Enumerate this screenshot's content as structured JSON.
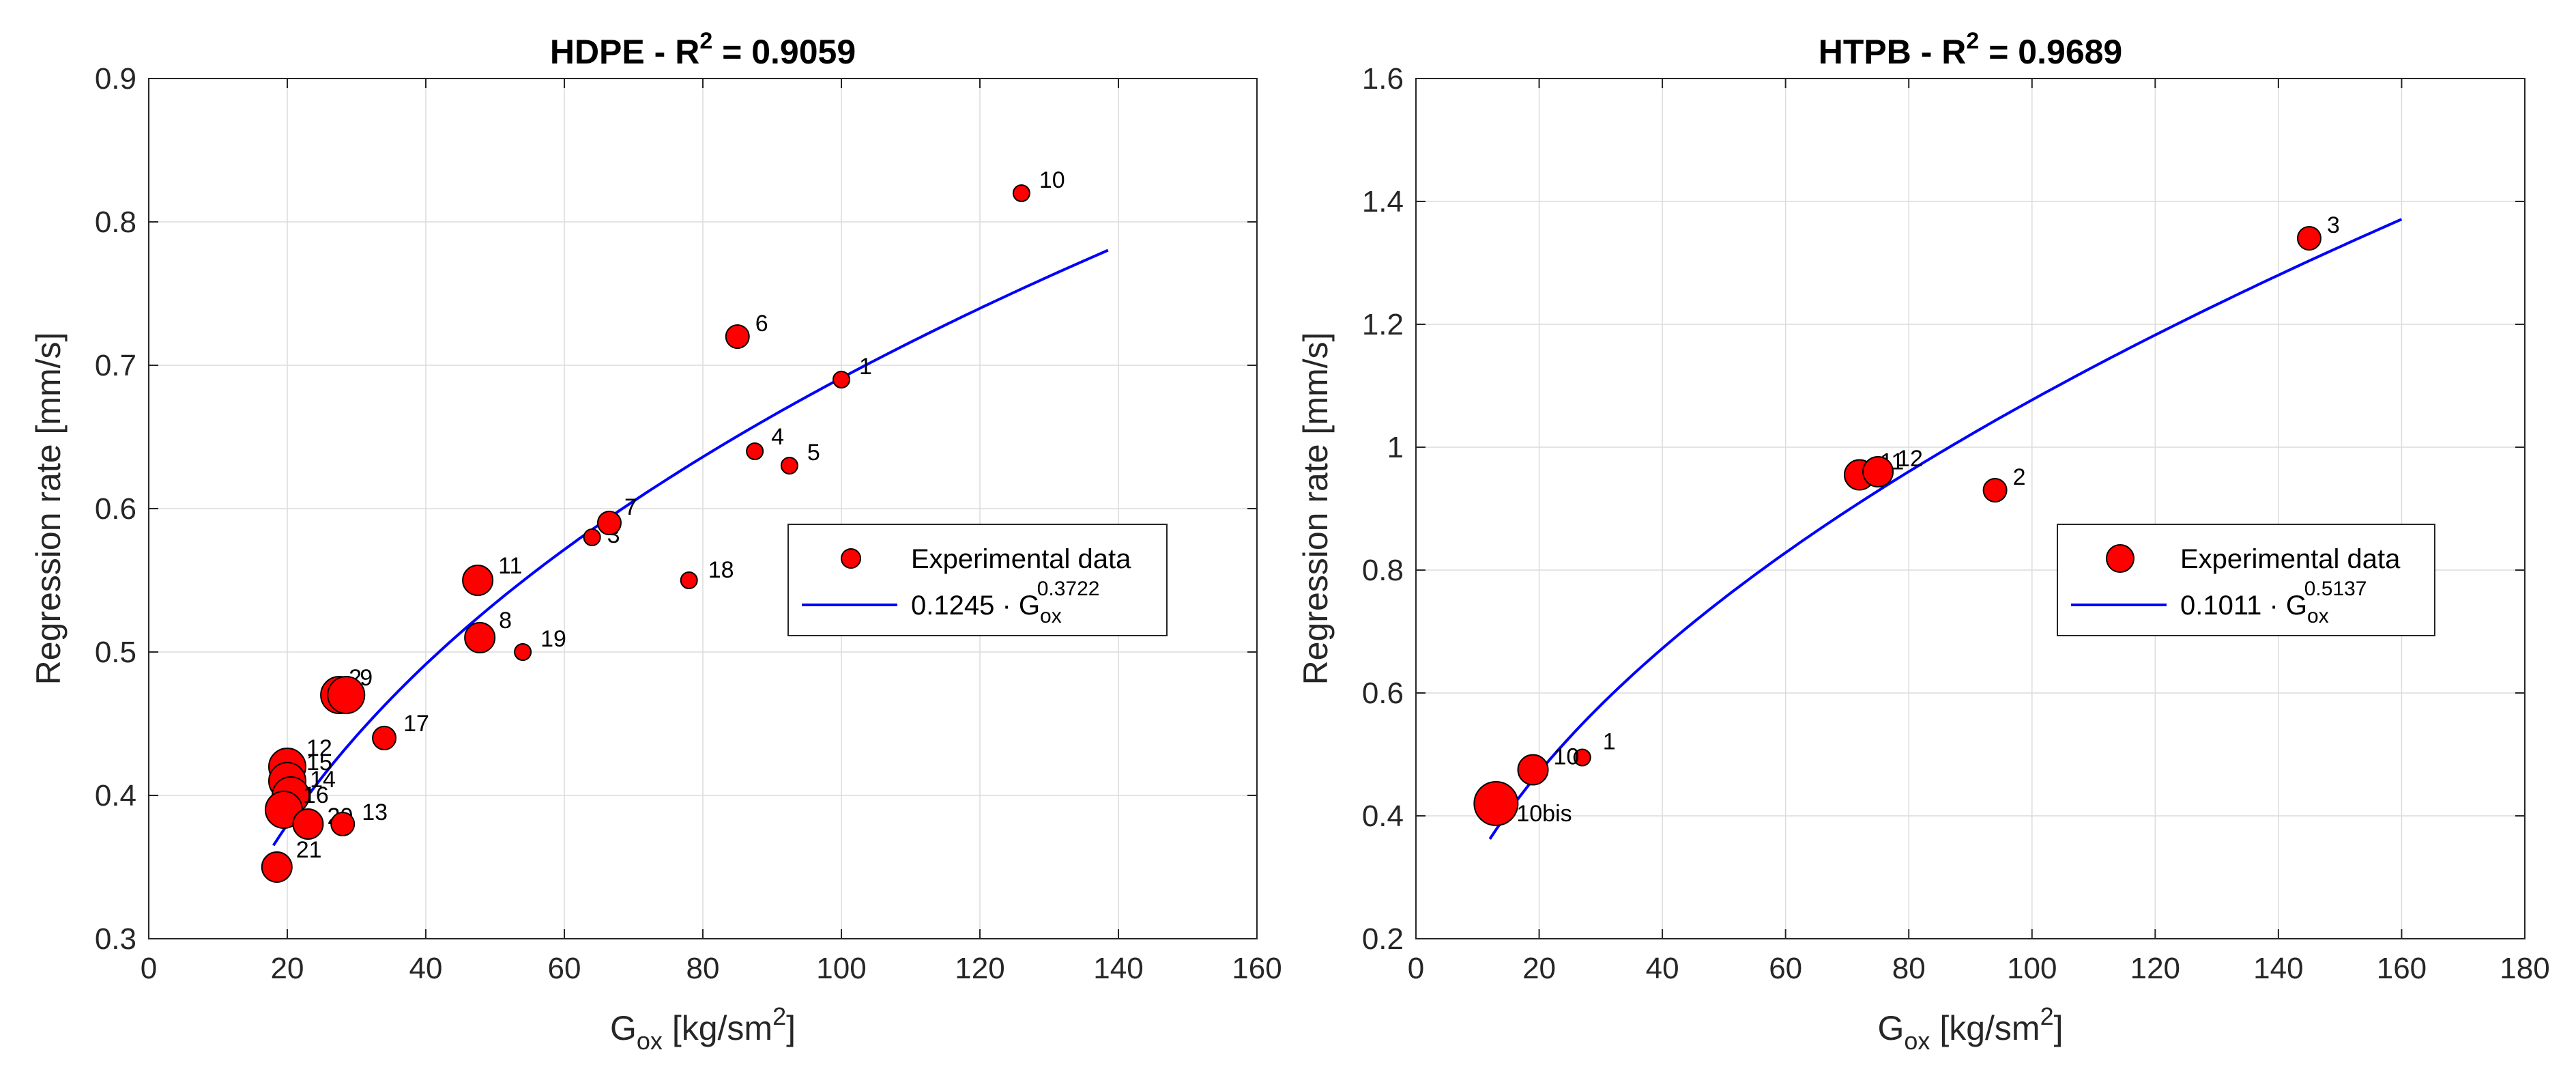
{
  "chart_data": [
    {
      "type": "scatter",
      "title_main": "HDPE - R",
      "title_sup": "2",
      "title_value": " = 0.9059",
      "xlabel_main": "G",
      "xlabel_sub": "ox",
      "xlabel_unit": " [kg/sm",
      "xlabel_sup": "2",
      "xlabel_close": "]",
      "ylabel": "Regression rate [mm/s]",
      "xlim": [
        0,
        160
      ],
      "ylim": [
        0.3,
        0.9
      ],
      "xticks": [
        0,
        20,
        40,
        60,
        80,
        100,
        120,
        140,
        160
      ],
      "xtick_labels": [
        "0",
        "20",
        "40",
        "60",
        "80",
        "100",
        "120",
        "140",
        "160"
      ],
      "yticks": [
        0.3,
        0.4,
        0.5,
        0.6,
        0.7,
        0.8,
        0.9
      ],
      "ytick_labels": [
        "0.3",
        "0.4",
        "0.5",
        "0.6",
        "0.7",
        "0.8",
        "0.9"
      ],
      "grid": true,
      "legend_position": "right",
      "legend": {
        "data_label": "Experimental data",
        "fit_coef": "0.1245 · G",
        "fit_sub": "ox",
        "fit_sup": "0.3722"
      },
      "marker_color": "#ff0000",
      "fit_color": "#0000ff",
      "fit": {
        "a": 0.1245,
        "b": 0.3722,
        "x_range": [
          18,
          138.5
        ]
      },
      "points": [
        {
          "label": "10",
          "x": 126,
          "y": 0.82,
          "size": 1
        },
        {
          "label": "6",
          "x": 85,
          "y": 0.72,
          "size": 2
        },
        {
          "label": "1",
          "x": 100,
          "y": 0.69,
          "size": 1
        },
        {
          "label": "4",
          "x": 87.5,
          "y": 0.64,
          "size": 1
        },
        {
          "label": "5",
          "x": 92.5,
          "y": 0.63,
          "size": 1
        },
        {
          "label": "3",
          "x": 64,
          "y": 0.58,
          "size": 1
        },
        {
          "label": "7",
          "x": 66.5,
          "y": 0.59,
          "size": 2
        },
        {
          "label": "18",
          "x": 78,
          "y": 0.55,
          "size": 1
        },
        {
          "label": "11",
          "x": 47.5,
          "y": 0.55,
          "size": 3
        },
        {
          "label": "8",
          "x": 47.8,
          "y": 0.51,
          "size": 3
        },
        {
          "label": "19",
          "x": 54,
          "y": 0.5,
          "size": 1
        },
        {
          "label": "2",
          "x": 27.5,
          "y": 0.47,
          "size": 4
        },
        {
          "label": "9",
          "x": 28.5,
          "y": 0.47,
          "size": 4
        },
        {
          "label": "17",
          "x": 34,
          "y": 0.44,
          "size": 2
        },
        {
          "label": "12",
          "x": 20,
          "y": 0.42,
          "size": 4
        },
        {
          "label": "15",
          "x": 20,
          "y": 0.41,
          "size": 4
        },
        {
          "label": "14",
          "x": 20.5,
          "y": 0.4,
          "size": 4
        },
        {
          "label": "16",
          "x": 19.5,
          "y": 0.39,
          "size": 4
        },
        {
          "label": "20",
          "x": 23,
          "y": 0.38,
          "size": 3
        },
        {
          "label": "13",
          "x": 28,
          "y": 0.38,
          "size": 2
        },
        {
          "label": "21",
          "x": 18.5,
          "y": 0.35,
          "size": 3
        }
      ]
    },
    {
      "type": "scatter",
      "title_main": "HTPB - R",
      "title_sup": "2",
      "title_value": " = 0.9689",
      "xlabel_main": "G",
      "xlabel_sub": "ox",
      "xlabel_unit": " [kg/sm",
      "xlabel_sup": "2",
      "xlabel_close": "]",
      "ylabel": "Regression rate [mm/s]",
      "xlim": [
        0,
        180
      ],
      "ylim": [
        0.2,
        1.6
      ],
      "xticks": [
        0,
        20,
        40,
        60,
        80,
        100,
        120,
        140,
        160,
        180
      ],
      "xtick_labels": [
        "0",
        "20",
        "40",
        "60",
        "80",
        "100",
        "120",
        "140",
        "160",
        "180"
      ],
      "yticks": [
        0.2,
        0.4,
        0.6,
        0.8,
        1.0,
        1.2,
        1.4,
        1.6
      ],
      "ytick_labels": [
        "0.2",
        "0.4",
        "0.6",
        "0.8",
        "1",
        "1.2",
        "1.4",
        "1.6"
      ],
      "grid": true,
      "legend_position": "right",
      "legend": {
        "data_label": "Experimental data",
        "fit_coef": "0.1011 · G",
        "fit_sub": "ox",
        "fit_sup": "0.5137"
      },
      "marker_color": "#ff0000",
      "fit_color": "#0000ff",
      "fit": {
        "a": 0.1011,
        "b": 0.5137,
        "x_range": [
          12,
          160
        ]
      },
      "points": [
        {
          "label": "3",
          "x": 145,
          "y": 1.34,
          "size": 2
        },
        {
          "label": "11",
          "x": 72,
          "y": 0.955,
          "size": 3
        },
        {
          "label": "12",
          "x": 75,
          "y": 0.96,
          "size": 3
        },
        {
          "label": "2",
          "x": 94,
          "y": 0.93,
          "size": 2
        },
        {
          "label": "1",
          "x": 27,
          "y": 0.495,
          "size": 1
        },
        {
          "label": "10",
          "x": 19,
          "y": 0.475,
          "size": 3
        },
        {
          "label": "10bis",
          "x": 13,
          "y": 0.42,
          "size": 5
        }
      ]
    }
  ]
}
